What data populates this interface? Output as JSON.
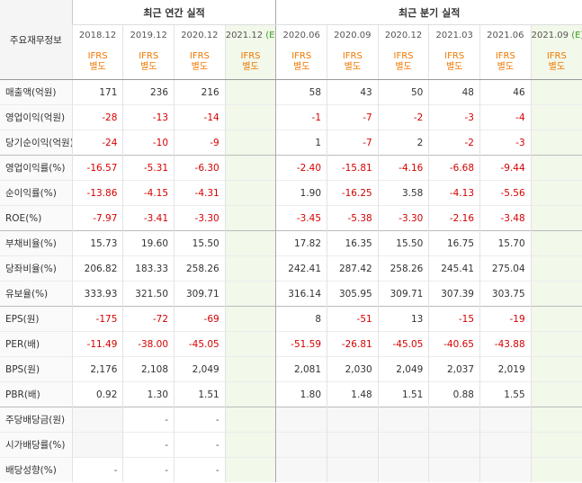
{
  "header": {
    "row_label": "주요재무정보",
    "annual_title": "최근 연간 실적",
    "quarterly_title": "최근 분기 실적",
    "periods": [
      "2018.12",
      "2019.12",
      "2020.12",
      "2021.12",
      "2020.06",
      "2020.09",
      "2020.12",
      "2021.03",
      "2021.06",
      "2021.09"
    ],
    "estimate_mark": "(E)",
    "ifrs_line1": "IFRS",
    "ifrs_line2": "별도"
  },
  "rows": [
    {
      "label": "매출액(억원)",
      "values": [
        "171",
        "236",
        "216",
        "",
        "58",
        "43",
        "50",
        "48",
        "46",
        ""
      ]
    },
    {
      "label": "영업이익(억원)",
      "values": [
        "-28",
        "-13",
        "-14",
        "",
        "-1",
        "-7",
        "-2",
        "-3",
        "-4",
        ""
      ]
    },
    {
      "label": "당기순이익(억원)",
      "values": [
        "-24",
        "-10",
        "-9",
        "",
        "1",
        "-7",
        "2",
        "-2",
        "-3",
        ""
      ]
    },
    {
      "label": "영업이익률(%)",
      "values": [
        "-16.57",
        "-5.31",
        "-6.30",
        "",
        "-2.40",
        "-15.81",
        "-4.16",
        "-6.68",
        "-9.44",
        ""
      ]
    },
    {
      "label": "순이익률(%)",
      "values": [
        "-13.86",
        "-4.15",
        "-4.31",
        "",
        "1.90",
        "-16.25",
        "3.58",
        "-4.13",
        "-5.56",
        ""
      ]
    },
    {
      "label": "ROE(%)",
      "values": [
        "-7.97",
        "-3.41",
        "-3.30",
        "",
        "-3.45",
        "-5.38",
        "-3.30",
        "-2.16",
        "-3.48",
        ""
      ]
    },
    {
      "label": "부채비율(%)",
      "values": [
        "15.73",
        "19.60",
        "15.50",
        "",
        "17.82",
        "16.35",
        "15.50",
        "16.75",
        "15.70",
        ""
      ]
    },
    {
      "label": "당좌비율(%)",
      "values": [
        "206.82",
        "183.33",
        "258.26",
        "",
        "242.41",
        "287.42",
        "258.26",
        "245.41",
        "275.04",
        ""
      ]
    },
    {
      "label": "유보율(%)",
      "values": [
        "333.93",
        "321.50",
        "309.71",
        "",
        "316.14",
        "305.95",
        "309.71",
        "307.39",
        "303.75",
        ""
      ]
    },
    {
      "label": "EPS(원)",
      "values": [
        "-175",
        "-72",
        "-69",
        "",
        "8",
        "-51",
        "13",
        "-15",
        "-19",
        ""
      ]
    },
    {
      "label": "PER(배)",
      "values": [
        "-11.49",
        "-38.00",
        "-45.05",
        "",
        "-51.59",
        "-26.81",
        "-45.05",
        "-40.65",
        "-43.88",
        ""
      ]
    },
    {
      "label": "BPS(원)",
      "values": [
        "2,176",
        "2,108",
        "2,049",
        "",
        "2,081",
        "2,030",
        "2,049",
        "2,037",
        "2,019",
        ""
      ]
    },
    {
      "label": "PBR(배)",
      "values": [
        "0.92",
        "1.30",
        "1.51",
        "",
        "1.80",
        "1.48",
        "1.51",
        "0.88",
        "1.55",
        ""
      ]
    },
    {
      "label": "주당배당금(원)",
      "values": [
        "",
        "-",
        "-",
        "",
        "",
        "",
        "",
        "",
        "",
        ""
      ]
    },
    {
      "label": "시가배당률(%)",
      "values": [
        "",
        "-",
        "-",
        "",
        "",
        "",
        "",
        "",
        "",
        ""
      ]
    },
    {
      "label": "배당성향(%)",
      "values": [
        "-",
        "-",
        "-",
        "",
        "",
        "",
        "",
        "",
        "",
        ""
      ]
    }
  ],
  "colors": {
    "negative": "#d60000",
    "ifrs": "#f07800",
    "estimate_bg": "#f2f8ea",
    "estimate_mark": "#3a9d23"
  }
}
